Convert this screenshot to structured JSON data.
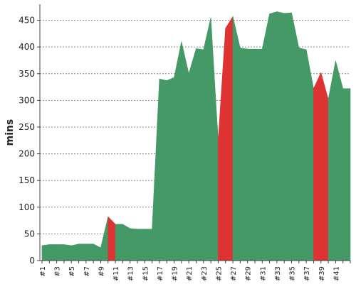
{
  "chart_data": {
    "type": "area",
    "ylabel": "mins",
    "ylim": [
      0,
      480
    ],
    "yticks": [
      0,
      50,
      100,
      150,
      200,
      250,
      300,
      350,
      400,
      450
    ],
    "grid": true,
    "colors": {
      "normal": "#449966",
      "highlight": "#dd3333",
      "grid": "#888888",
      "axis": "#444444"
    },
    "x_labels": [
      "#1",
      "#3",
      "#5",
      "#7",
      "#9",
      "#11",
      "#13",
      "#15",
      "#17",
      "#19",
      "#21",
      "#23",
      "#25",
      "#27",
      "#29",
      "#31",
      "#33",
      "#35",
      "#37",
      "#39",
      "#41"
    ],
    "values": [
      28,
      30,
      30,
      30,
      28,
      31,
      31,
      31,
      24,
      82,
      68,
      68,
      60,
      59,
      59,
      59,
      340,
      337,
      343,
      410,
      350,
      397,
      395,
      455,
      225,
      435,
      457,
      398,
      396,
      396,
      396,
      462,
      466,
      463,
      464,
      398,
      395,
      322,
      352,
      302,
      374,
      322,
      322
    ],
    "highlight_segments": [
      [
        9,
        10
      ],
      [
        24,
        26
      ],
      [
        37,
        39
      ]
    ]
  }
}
